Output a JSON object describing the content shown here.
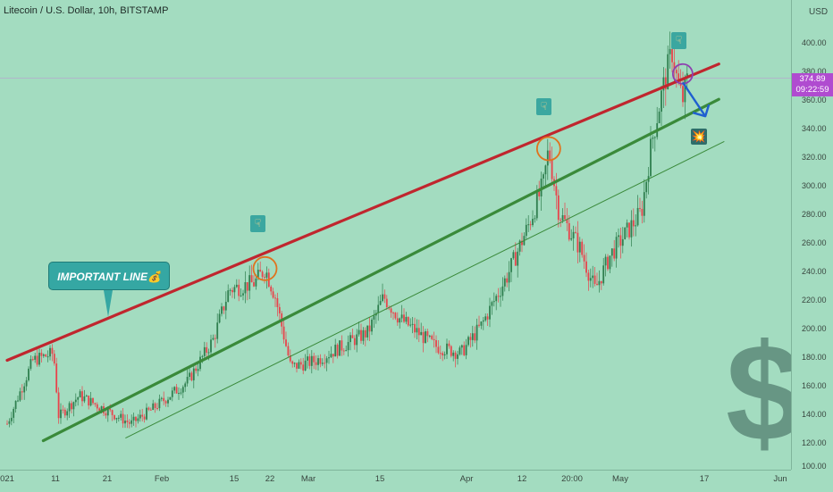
{
  "header": {
    "title": "Litecoin / U.S. Dollar, 10h, BITSTAMP"
  },
  "price_axis": {
    "currency": "USD",
    "ticks": [
      "400.00",
      "380.00",
      "360.00",
      "340.00",
      "320.00",
      "300.00",
      "280.00",
      "260.00",
      "240.00",
      "220.00",
      "200.00",
      "180.00",
      "160.00",
      "140.00",
      "120.00",
      "100.00"
    ],
    "current_price": "374.89",
    "countdown": "09:22:59"
  },
  "time_axis": {
    "ticks": [
      "021",
      "11",
      "21",
      "Feb",
      "15",
      "22",
      "Mar",
      "15",
      "Apr",
      "12",
      "20:00",
      "May",
      "17",
      "Jun"
    ]
  },
  "annotations": {
    "callout_text": "IMPORTANT LINE💰",
    "pointer_glyph": "☟",
    "explosion_glyph": "💥",
    "watermark": "$"
  },
  "colors": {
    "background": "#a3dcc0",
    "candle_up": "#2f7f4f",
    "candle_down": "#e8434b",
    "resistance_line": "#c0262e",
    "support_line": "#3a8a3a",
    "lower_channel_line": "#3a8a3a",
    "circle_orange": "#e0731e",
    "circle_purple": "#8d3fb0",
    "arrow_blue": "#1f5fd0",
    "current_price_label": "#b04bd0"
  },
  "chart_data": {
    "type": "candlestick",
    "symbol": "Litecoin / U.S. Dollar",
    "interval": "10h",
    "exchange": "BITSTAMP",
    "ylim": [
      100,
      420
    ],
    "x_range": [
      "2021-01-01",
      "2021-06-01"
    ],
    "keypoints": [
      {
        "date": "2021-01-01",
        "close": 130
      },
      {
        "date": "2021-01-06",
        "close": 175
      },
      {
        "date": "2021-01-10",
        "close": 180
      },
      {
        "date": "2021-01-11",
        "close": 135
      },
      {
        "date": "2021-01-15",
        "close": 150
      },
      {
        "date": "2021-01-20",
        "close": 140
      },
      {
        "date": "2021-01-25",
        "close": 130
      },
      {
        "date": "2021-01-29",
        "close": 140
      },
      {
        "date": "2021-02-05",
        "close": 160
      },
      {
        "date": "2021-02-10",
        "close": 190
      },
      {
        "date": "2021-02-13",
        "close": 225
      },
      {
        "date": "2021-02-18",
        "close": 230
      },
      {
        "date": "2021-02-20",
        "close": 240
      },
      {
        "date": "2021-02-22",
        "close": 220
      },
      {
        "date": "2021-02-25",
        "close": 170
      },
      {
        "date": "2021-03-02",
        "close": 175
      },
      {
        "date": "2021-03-07",
        "close": 185
      },
      {
        "date": "2021-03-12",
        "close": 195
      },
      {
        "date": "2021-03-15",
        "close": 220
      },
      {
        "date": "2021-03-18",
        "close": 205
      },
      {
        "date": "2021-03-25",
        "close": 185
      },
      {
        "date": "2021-03-30",
        "close": 180
      },
      {
        "date": "2021-04-03",
        "close": 200
      },
      {
        "date": "2021-04-08",
        "close": 235
      },
      {
        "date": "2021-04-12",
        "close": 270
      },
      {
        "date": "2021-04-15",
        "close": 300
      },
      {
        "date": "2021-04-16",
        "close": 325
      },
      {
        "date": "2021-04-18",
        "close": 280
      },
      {
        "date": "2021-04-22",
        "close": 255
      },
      {
        "date": "2021-04-25",
        "close": 225
      },
      {
        "date": "2021-04-28",
        "close": 250
      },
      {
        "date": "2021-05-01",
        "close": 265
      },
      {
        "date": "2021-05-04",
        "close": 280
      },
      {
        "date": "2021-05-06",
        "close": 330
      },
      {
        "date": "2021-05-08",
        "close": 365
      },
      {
        "date": "2021-05-10",
        "close": 395
      },
      {
        "date": "2021-05-11",
        "close": 370
      },
      {
        "date": "2021-05-12",
        "close": 360
      },
      {
        "date": "2021-05-13",
        "close": 375
      }
    ],
    "trendlines": [
      {
        "name": "resistance",
        "from": [
          "2021-01-01",
          175
        ],
        "to": [
          "2021-05-19",
          385
        ]
      },
      {
        "name": "support",
        "from": [
          "2021-01-08",
          118
        ],
        "to": [
          "2021-05-19",
          360
        ]
      },
      {
        "name": "lower_channel",
        "from": [
          "2021-01-24",
          120
        ],
        "to": [
          "2021-05-20",
          330
        ]
      }
    ],
    "marked_peaks": [
      {
        "date": "2021-02-20",
        "price": 240
      },
      {
        "date": "2021-04-16",
        "price": 325
      },
      {
        "date": "2021-05-12",
        "price": 378
      }
    ],
    "projection_arrow": {
      "from": [
        "2021-05-12",
        372
      ],
      "to": [
        "2021-05-15",
        348
      ]
    }
  }
}
